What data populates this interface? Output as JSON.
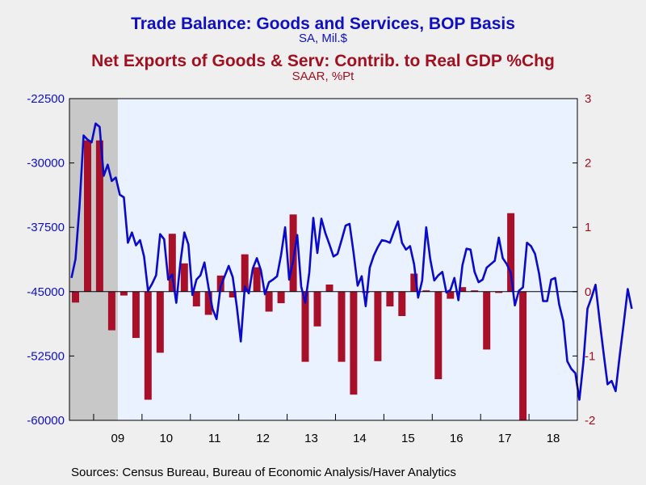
{
  "chart_data": {
    "type": "bar+line",
    "title": "Trade Balance: Goods and Services, BOP Basis",
    "title_units": "SA, Mil.$",
    "subtitle": "Net Exports of Goods & Serv: Contrib. to Real GDP %Chg",
    "subtitle_units": "SAAR, %Pt",
    "source": "Sources:  Census Bureau, Bureau of Economic Analysis/Haver Analytics",
    "x_tick_labels": [
      "09",
      "10",
      "11",
      "12",
      "13",
      "14",
      "15",
      "16",
      "17",
      "18"
    ],
    "x_range": [
      "2008-07",
      "2018-12"
    ],
    "recession_shading": [
      "2008-07",
      "2009-06"
    ],
    "left_axis": {
      "ticks": [
        -22500,
        -30000,
        -37500,
        -45000,
        -52500,
        -60000
      ],
      "ylim": [
        -60000,
        -22500
      ]
    },
    "right_axis": {
      "ticks": [
        3,
        2,
        1,
        0,
        -1,
        -2
      ],
      "ylim": [
        -2,
        3
      ]
    },
    "colors": {
      "line": "#0a0ac8",
      "bars": "#a8102a",
      "shade": "#c8c8c8",
      "plot_bg": "#eaf2ff"
    },
    "series": [
      {
        "kind": "line",
        "axis": "left",
        "start": "2008-07",
        "frequency": "monthly",
        "values": [
          -43400,
          -41200,
          -35000,
          -26800,
          -27300,
          -27600,
          -25400,
          -25800,
          -31500,
          -30200,
          -32100,
          -31700,
          -33700,
          -34000,
          -39300,
          -38100,
          -39600,
          -39000,
          -40900,
          -44900,
          -44100,
          -43100,
          -38300,
          -38900,
          -43600,
          -43000,
          -46300,
          -41700,
          -38100,
          -39500,
          -45400,
          -43600,
          -43100,
          -41600,
          -44500,
          -47000,
          -48200,
          -44400,
          -43200,
          -42000,
          -43300,
          -46700,
          -50800,
          -44400,
          -45200,
          -42300,
          -41100,
          -42500,
          -45300,
          -43900,
          -43600,
          -43200,
          -40700,
          -37500,
          -43600,
          -41400,
          -38400,
          -44400,
          -46300,
          -42800,
          -36400,
          -40500,
          -36500,
          -38200,
          -39500,
          -40900,
          -40600,
          -39000,
          -37300,
          -37100,
          -40500,
          -44300,
          -43200,
          -46700,
          -42200,
          -40800,
          -39800,
          -39000,
          -39100,
          -39300,
          -38000,
          -36800,
          -39300,
          -40100,
          -39700,
          -41800,
          -45700,
          -43700,
          -37500,
          -41200,
          -43700,
          -43100,
          -42700,
          -45100,
          -44800,
          -43400,
          -46000,
          -41900,
          -40000,
          -40100,
          -42700,
          -43900,
          -43600,
          -42200,
          -41800,
          -41400,
          -38700,
          -41100,
          -41800,
          -42800,
          -46600,
          -44900,
          -44500,
          -39300,
          -39700,
          -40600,
          -42900,
          -46100,
          -46100,
          -43600,
          -43400,
          -46500,
          -48400,
          -53100,
          -54000,
          -54500,
          -57600,
          -53200,
          -47000,
          -45700,
          -44200,
          -48300,
          -52100,
          -55800,
          -55400,
          -56600,
          -52500,
          -48700,
          -44700,
          -47000
        ]
      },
      {
        "kind": "bar",
        "axis": "right",
        "start": "2008Q3",
        "frequency": "quarterly",
        "values": [
          -0.17,
          2.35,
          2.35,
          -0.6,
          -0.06,
          -0.72,
          -1.68,
          -0.95,
          0.9,
          0.44,
          -0.23,
          -0.36,
          0.25,
          -0.09,
          0.58,
          0.38,
          -0.31,
          -0.18,
          1.2,
          -1.09,
          -0.54,
          0.11,
          -1.09,
          -1.6,
          -0.02,
          -1.08,
          -0.23,
          -0.38,
          0.28,
          0.02,
          -1.36,
          -0.11,
          0.07,
          0.02,
          -0.9,
          -0.02,
          1.22,
          -2.0
        ]
      }
    ]
  }
}
